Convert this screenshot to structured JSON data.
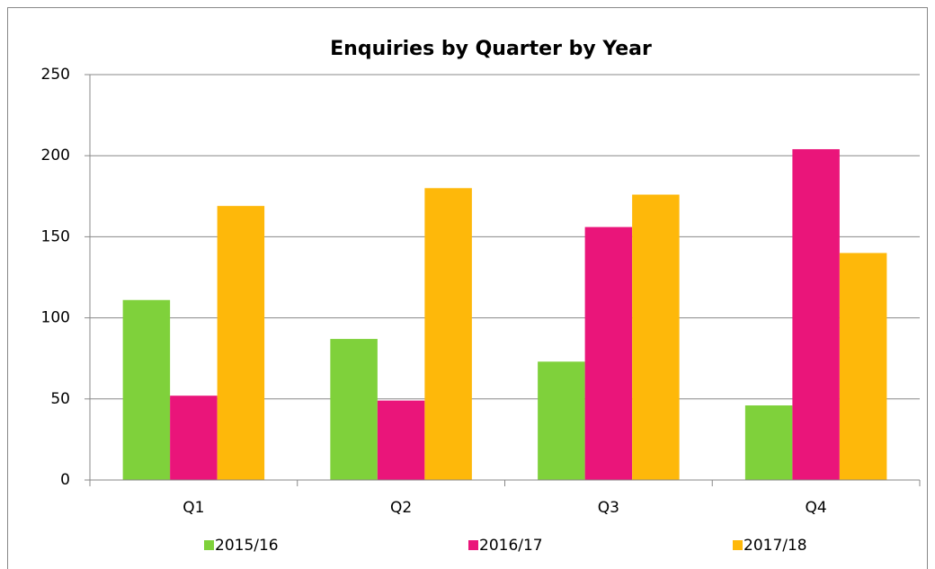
{
  "chart_data": {
    "type": "bar",
    "title": "Enquiries by Quarter by Year",
    "categories": [
      "Q1",
      "Q2",
      "Q3",
      "Q4"
    ],
    "series": [
      {
        "name": "2015/16",
        "color": "#7fd13b",
        "values": [
          111,
          87,
          73,
          46
        ]
      },
      {
        "name": "2016/17",
        "color": "#ea157a",
        "values": [
          52,
          49,
          156,
          204
        ]
      },
      {
        "name": "2017/18",
        "color": "#feb80a",
        "values": [
          169,
          180,
          176,
          140
        ]
      }
    ],
    "ylim": [
      0,
      250
    ],
    "yticks": [
      0,
      50,
      100,
      150,
      200,
      250
    ],
    "grid": true,
    "legend": "bottom"
  }
}
